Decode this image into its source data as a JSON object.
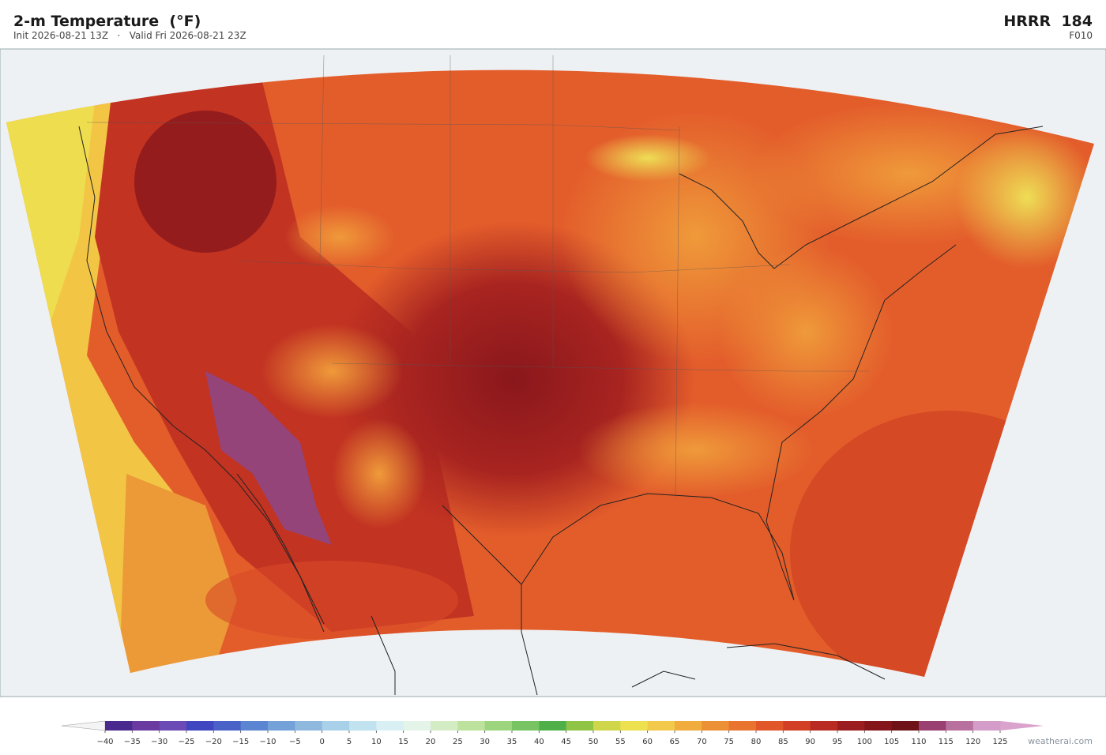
{
  "header": {
    "title": "2-m Temperature  (°F)",
    "init": "Init 2026-08-21 13Z",
    "separator": "·",
    "valid": "Valid Fri 2026-08-21 23Z",
    "model": "HRRR  184",
    "forecast_hour": "F010"
  },
  "colorbar": {
    "ticks": [
      {
        "value": -40,
        "label": "−40"
      },
      {
        "value": -35,
        "label": "−35"
      },
      {
        "value": -30,
        "label": "−30"
      },
      {
        "value": -25,
        "label": "−25"
      },
      {
        "value": -20,
        "label": "−20"
      },
      {
        "value": -15,
        "label": "−15"
      },
      {
        "value": -10,
        "label": "−10"
      },
      {
        "value": -5,
        "label": "−5"
      },
      0,
      5,
      10,
      15,
      20,
      25,
      30,
      35,
      40,
      45,
      50,
      55,
      60,
      65,
      70,
      75,
      80,
      85,
      90,
      95,
      100,
      105,
      110,
      115,
      120,
      125
    ],
    "colors": [
      "#4b2a8f",
      "#6a3aa0",
      "#6b4ab5",
      "#4046c0",
      "#4a62c8",
      "#5b85d0",
      "#74a1d8",
      "#8fb8df",
      "#a8d0e8",
      "#c0e3ef",
      "#d8eff3",
      "#e4f4e8",
      "#d4ecc4",
      "#bde29e",
      "#9cd57e",
      "#78c462",
      "#4fb04a",
      "#90c444",
      "#cfd64a",
      "#ede14f",
      "#f2c94a",
      "#f0ad3e",
      "#ec9035",
      "#e8742f",
      "#e2572a",
      "#d23f24",
      "#b92a22",
      "#9c1d1f",
      "#84161b",
      "#6e1218",
      "#9a4070",
      "#b8709e",
      "#d49cc8"
    ],
    "under_color": "#f4f4f4",
    "over_color": "#d9a3cd"
  },
  "credit": "weatherai.com"
}
